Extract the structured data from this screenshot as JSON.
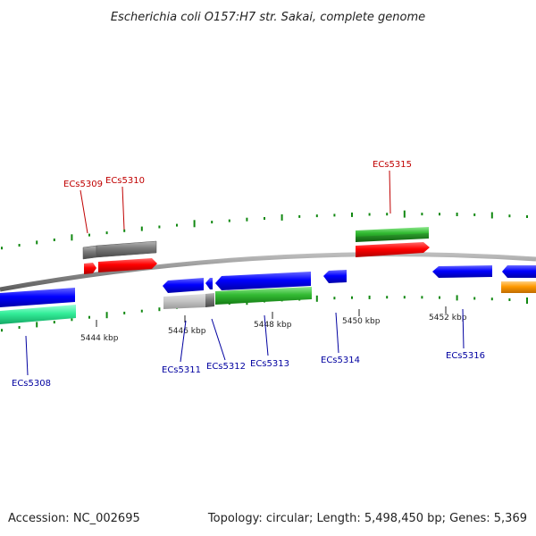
{
  "title": "Escherichia coli O157:H7 str. Sakai, complete genome",
  "footer": {
    "accession": "Accession: NC_002695",
    "topology": "Topology: circular; Length: 5,498,450 bp; Genes: 5,369"
  },
  "colors": {
    "forward_cds": "#ff0000",
    "forward_gene": "#22aa22",
    "reverse_cds": "#0000ff",
    "reverse_gene": "#33dd99",
    "pseudo_gray": "#777777",
    "other_orange": "#ff9900",
    "backbone": "#888888",
    "gc_skew": "#118811",
    "label_forward": "#c00000",
    "label_reverse": "#0000a0"
  },
  "scale_labels": [
    "5444 kbp",
    "5446 kbp",
    "5448 kbp",
    "5450 kbp",
    "5452 kbp"
  ],
  "gene_labels_forward": [
    "ECs5309",
    "ECs5310",
    "ECs5315"
  ],
  "gene_labels_reverse": [
    "ECs5308",
    "ECs5311",
    "ECs5312",
    "ECs5313",
    "ECs5314",
    "ECs5316"
  ]
}
